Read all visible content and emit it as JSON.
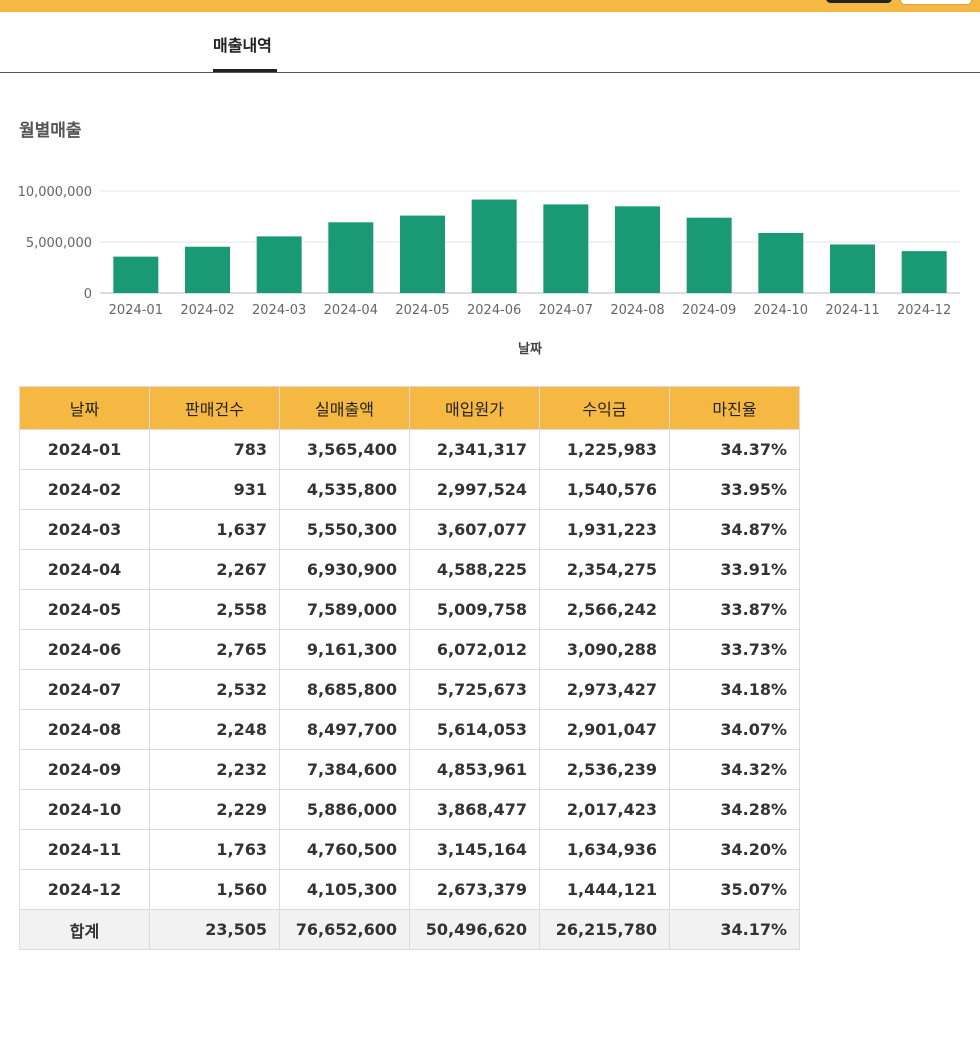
{
  "tabs": {
    "active_label": "매출내역"
  },
  "section": {
    "title": "월별매출"
  },
  "colors": {
    "accent": "#f5b843",
    "bar": "#1a9a74"
  },
  "chart_data": {
    "type": "bar",
    "categories": [
      "2024-01",
      "2024-02",
      "2024-03",
      "2024-04",
      "2024-05",
      "2024-06",
      "2024-07",
      "2024-08",
      "2024-09",
      "2024-10",
      "2024-11",
      "2024-12"
    ],
    "values": [
      3565400,
      4535800,
      5550300,
      6930900,
      7589000,
      9161300,
      8685800,
      8497700,
      7384600,
      5886000,
      4760500,
      4105300
    ],
    "yticks": [
      {
        "value": 0,
        "label": "0"
      },
      {
        "value": 5000000,
        "label": "5,000,000"
      },
      {
        "value": 10000000,
        "label": "10,000,000"
      }
    ],
    "ylim": [
      0,
      10000000
    ],
    "xlabel": "날짜",
    "ylabel": "",
    "grid": true
  },
  "table": {
    "headers": [
      "날짜",
      "판매건수",
      "실매출액",
      "매입원가",
      "수익금",
      "마진율"
    ],
    "rows": [
      [
        "2024-01",
        "783",
        "3,565,400",
        "2,341,317",
        "1,225,983",
        "34.37%"
      ],
      [
        "2024-02",
        "931",
        "4,535,800",
        "2,997,524",
        "1,540,576",
        "33.95%"
      ],
      [
        "2024-03",
        "1,637",
        "5,550,300",
        "3,607,077",
        "1,931,223",
        "34.87%"
      ],
      [
        "2024-04",
        "2,267",
        "6,930,900",
        "4,588,225",
        "2,354,275",
        "33.91%"
      ],
      [
        "2024-05",
        "2,558",
        "7,589,000",
        "5,009,758",
        "2,566,242",
        "33.87%"
      ],
      [
        "2024-06",
        "2,765",
        "9,161,300",
        "6,072,012",
        "3,090,288",
        "33.73%"
      ],
      [
        "2024-07",
        "2,532",
        "8,685,800",
        "5,725,673",
        "2,973,427",
        "34.18%"
      ],
      [
        "2024-08",
        "2,248",
        "8,497,700",
        "5,614,053",
        "2,901,047",
        "34.07%"
      ],
      [
        "2024-09",
        "2,232",
        "7,384,600",
        "4,853,961",
        "2,536,239",
        "34.32%"
      ],
      [
        "2024-10",
        "2,229",
        "5,886,000",
        "3,868,477",
        "2,017,423",
        "34.28%"
      ],
      [
        "2024-11",
        "1,763",
        "4,760,500",
        "3,145,164",
        "1,634,936",
        "34.20%"
      ],
      [
        "2024-12",
        "1,560",
        "4,105,300",
        "2,673,379",
        "1,444,121",
        "35.07%"
      ]
    ],
    "total": [
      "합계",
      "23,505",
      "76,652,600",
      "50,496,620",
      "26,215,780",
      "34.17%"
    ]
  }
}
